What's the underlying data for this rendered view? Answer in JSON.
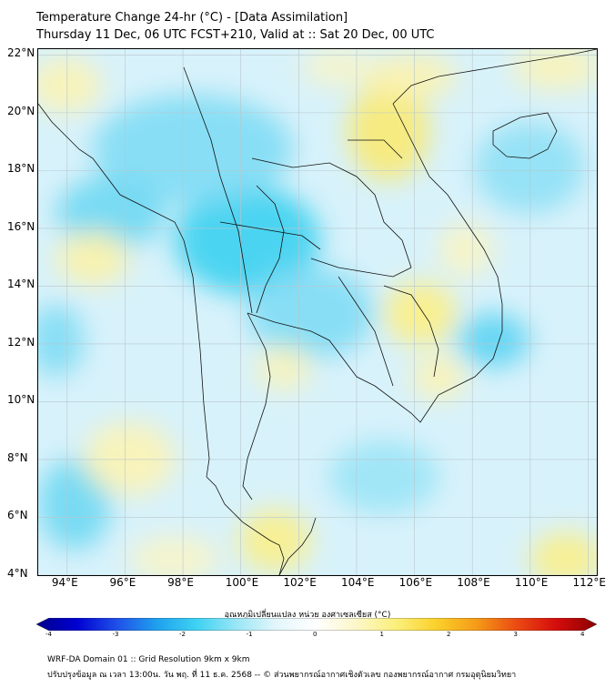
{
  "title": {
    "line1": "Temperature Change 24-hr (°C) - [Data Assimilation]",
    "line2": "Thursday 11 Dec, 06 UTC FCST+210, Valid at :: Sat 20 Dec, 00 UTC"
  },
  "map": {
    "lat_labels": [
      "22°N",
      "20°N",
      "18°N",
      "16°N",
      "14°N",
      "12°N",
      "10°N",
      "8°N",
      "6°N",
      "4°N"
    ],
    "lon_labels": [
      "94°E",
      "96°E",
      "98°E",
      "100°E",
      "102°E",
      "104°E",
      "106°E",
      "108°E",
      "110°E",
      "112°E"
    ],
    "lat_range": [
      4,
      22.2
    ],
    "lon_range": [
      93,
      112.3
    ],
    "background_color": "#d8f2fb",
    "grid": true
  },
  "colorbar": {
    "title": "อุณหภูมิเปลี่ยนแปลง หน่วย องศาเซลเซียส (°C)",
    "ticks": [
      "-4",
      "-3",
      "-2",
      "-1",
      "0",
      "1",
      "2",
      "3",
      "4"
    ],
    "range": [
      -4,
      4
    ],
    "colors": [
      "#00008b",
      "#0000d0",
      "#1f4fe8",
      "#1fa0ee",
      "#3ed2f2",
      "#9ae6f6",
      "#e4f6fb",
      "#ffffff",
      "#fcf7c8",
      "#fbef7a",
      "#fbd02a",
      "#f59a18",
      "#eb4a12",
      "#d40c0c",
      "#8b0000"
    ]
  },
  "footer": {
    "line1": "WRF-DA Domain 01 :: Grid Resolution 9km x 9km",
    "line2": "ปรับปรุงข้อมูล ณ เวลา 13:00น. วัน พฤ. ที่ 11 ธ.ค. 2568 -- © ส่วนพยากรณ์อากาศเชิงตัวเลข กองพยากรณ์อากาศ กรมอุตุนิยมวิทยา"
  }
}
